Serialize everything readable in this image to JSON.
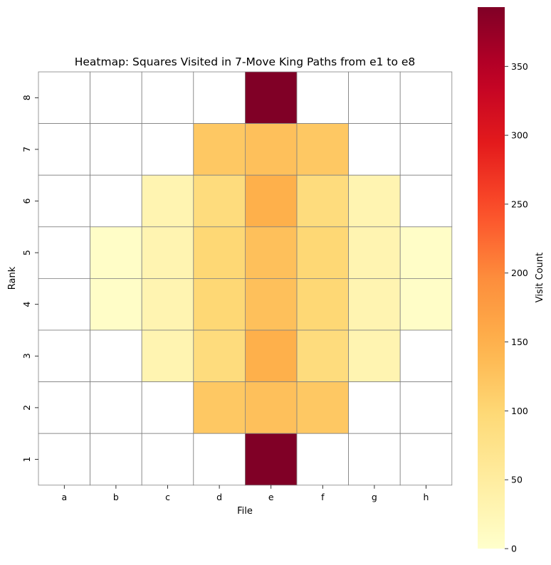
{
  "chart_data": {
    "type": "heatmap",
    "title": "Heatmap: Squares Visited in 7-Move King Paths from e1 to e8",
    "xlabel": "File",
    "ylabel": "Rank",
    "x_categories": [
      "a",
      "b",
      "c",
      "d",
      "e",
      "f",
      "g",
      "h"
    ],
    "y_categories": [
      "8",
      "7",
      "6",
      "5",
      "4",
      "3",
      "2",
      "1"
    ],
    "values": [
      [
        0,
        0,
        0,
        0,
        393,
        0,
        0,
        0
      ],
      [
        0,
        0,
        0,
        120,
        130,
        120,
        0,
        0
      ],
      [
        0,
        0,
        30,
        90,
        150,
        90,
        30,
        0
      ],
      [
        0,
        6,
        30,
        100,
        130,
        100,
        30,
        6
      ],
      [
        0,
        6,
        30,
        100,
        130,
        100,
        30,
        6
      ],
      [
        0,
        0,
        30,
        90,
        150,
        90,
        30,
        0
      ],
      [
        0,
        0,
        0,
        120,
        130,
        120,
        0,
        0
      ],
      [
        0,
        0,
        0,
        0,
        393,
        0,
        0,
        0
      ]
    ],
    "zero_cells_blank": true,
    "colorbar": {
      "label": "Visit Count",
      "min": 0,
      "max": 393,
      "ticks": [
        0,
        50,
        100,
        150,
        200,
        250,
        300,
        350
      ],
      "colormap": "YlOrRd"
    },
    "grid": true
  }
}
